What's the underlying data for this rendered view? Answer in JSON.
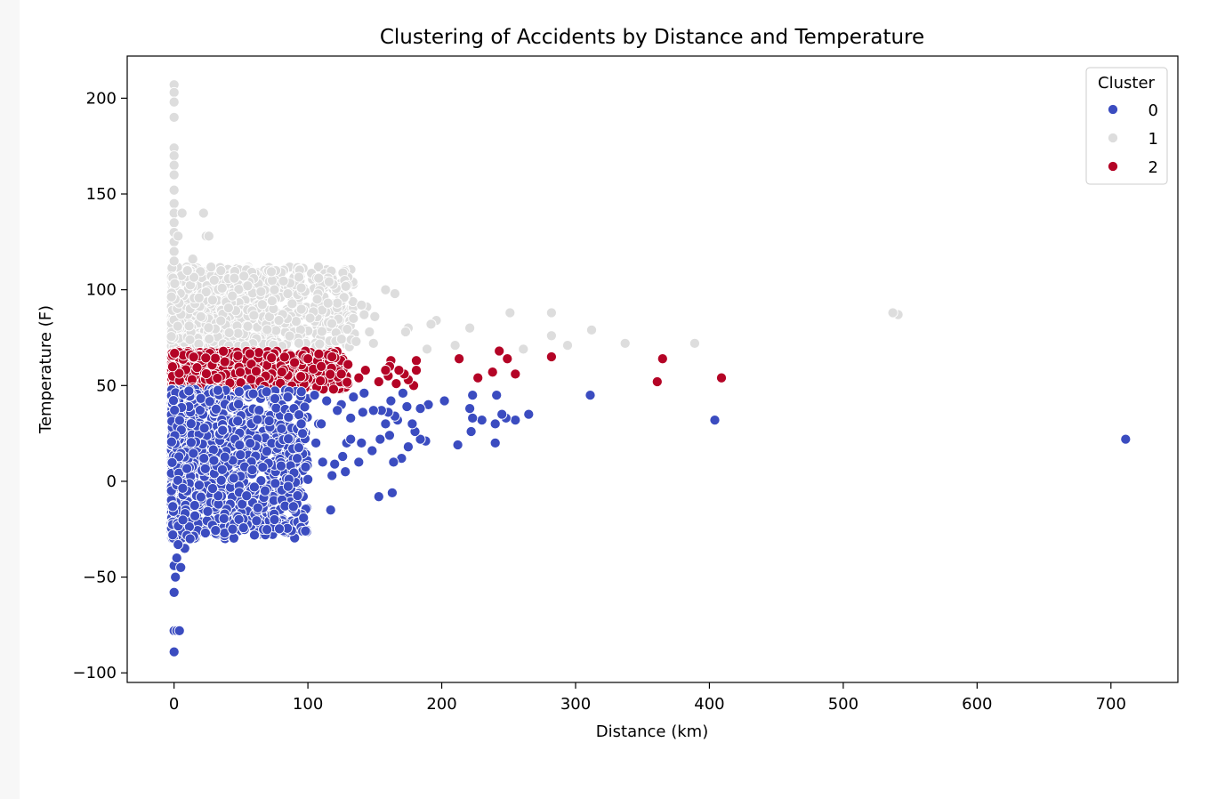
{
  "chart_data": {
    "type": "scatter",
    "title": "Clustering of Accidents by Distance and Temperature",
    "xlabel": "Distance (km)",
    "ylabel": "Temperature (F)",
    "xlim": [
      -35,
      750
    ],
    "ylim": [
      -105,
      222
    ],
    "xticks": [
      0,
      100,
      200,
      300,
      400,
      500,
      600,
      700
    ],
    "yticks": [
      -100,
      -50,
      0,
      50,
      100,
      150,
      200
    ],
    "ytick_labels": [
      "−100",
      "−50",
      "0",
      "50",
      "100",
      "150",
      "200"
    ],
    "grid": false,
    "legend": {
      "title": "Cluster",
      "placement": "top-right"
    },
    "series": [
      {
        "name": "0",
        "color": "#3b4cc0",
        "points": [
          [
            711,
            22
          ],
          [
            404,
            32
          ],
          [
            311,
            45
          ],
          [
            265,
            35
          ],
          [
            255,
            32
          ],
          [
            248,
            33
          ],
          [
            245,
            35
          ],
          [
            241,
            45
          ],
          [
            240,
            30
          ],
          [
            240,
            20
          ],
          [
            230,
            32
          ],
          [
            223,
            45
          ],
          [
            223,
            33
          ],
          [
            221,
            38
          ],
          [
            222,
            26
          ],
          [
            212,
            19
          ],
          [
            202,
            42
          ],
          [
            190,
            40
          ],
          [
            188,
            21
          ],
          [
            184,
            22
          ],
          [
            184,
            38
          ],
          [
            180,
            26
          ],
          [
            178,
            30
          ],
          [
            175,
            18
          ],
          [
            174,
            39
          ],
          [
            171,
            46
          ],
          [
            170,
            12
          ],
          [
            167,
            32
          ],
          [
            165,
            34
          ],
          [
            164,
            10
          ],
          [
            162,
            42
          ],
          [
            161,
            24
          ],
          [
            160,
            36
          ],
          [
            158,
            30
          ],
          [
            155,
            37
          ],
          [
            154,
            22
          ],
          [
            153,
            -8
          ],
          [
            149,
            37
          ],
          [
            148,
            16
          ],
          [
            142,
            46
          ],
          [
            141,
            36
          ],
          [
            138,
            10
          ],
          [
            134,
            44
          ],
          [
            132,
            33
          ],
          [
            129,
            20
          ],
          [
            128,
            5
          ],
          [
            126,
            13
          ],
          [
            125,
            40
          ],
          [
            122,
            37
          ],
          [
            120,
            9
          ],
          [
            118,
            3
          ],
          [
            117,
            -15
          ],
          [
            114,
            42
          ],
          [
            111,
            10
          ],
          [
            108,
            30
          ],
          [
            106,
            20
          ],
          [
            100,
            1
          ],
          [
            96,
            25
          ],
          [
            92,
            12
          ],
          [
            85,
            44
          ],
          [
            80,
            8
          ],
          [
            75,
            -20
          ],
          [
            68,
            -5
          ],
          [
            60,
            -3
          ],
          [
            163,
            -6
          ],
          [
            140,
            20
          ],
          [
            110,
            30
          ],
          [
            132,
            22
          ],
          [
            105,
            45
          ],
          [
            95,
            30
          ]
        ],
        "dense_region": {
          "x_range": [
            -2,
            100
          ],
          "y_range": [
            -30,
            48
          ],
          "count": 1300
        },
        "dense_column": [
          [
            0,
            -89
          ],
          [
            0,
            -78
          ],
          [
            2,
            -78
          ],
          [
            4,
            -78
          ],
          [
            0,
            -58
          ],
          [
            1,
            -50
          ],
          [
            0,
            -44
          ],
          [
            5,
            -45
          ],
          [
            2,
            -40
          ],
          [
            8,
            -35
          ],
          [
            12,
            -30
          ],
          [
            -1,
            -28
          ],
          [
            3,
            -33
          ]
        ]
      },
      {
        "name": "1",
        "color": "#dddddd",
        "points": [
          [
            541,
            87
          ],
          [
            537,
            88
          ],
          [
            389,
            72
          ],
          [
            337,
            72
          ],
          [
            312,
            79
          ],
          [
            294,
            71
          ],
          [
            282,
            76
          ],
          [
            282,
            88
          ],
          [
            261,
            69
          ],
          [
            251,
            88
          ],
          [
            221,
            80
          ],
          [
            210,
            71
          ],
          [
            196,
            84
          ],
          [
            192,
            82
          ],
          [
            189,
            69
          ],
          [
            175,
            80
          ],
          [
            173,
            78
          ],
          [
            165,
            98
          ],
          [
            158,
            100
          ],
          [
            150,
            86
          ],
          [
            149,
            72
          ],
          [
            146,
            78
          ],
          [
            144,
            91
          ],
          [
            142,
            87
          ],
          [
            140,
            92
          ],
          [
            136,
            73
          ],
          [
            134,
            85
          ],
          [
            127,
            96
          ],
          [
            122,
            93
          ],
          [
            115,
            93
          ],
          [
            107,
            95
          ],
          [
            95,
            101
          ],
          [
            85,
            98
          ],
          [
            75,
            100
          ],
          [
            65,
            99
          ],
          [
            55,
            102
          ],
          [
            45,
            106
          ],
          [
            35,
            110
          ],
          [
            30,
            105
          ],
          [
            24,
            128
          ],
          [
            22,
            140
          ],
          [
            26,
            128
          ],
          [
            6,
            140
          ],
          [
            3,
            128
          ],
          [
            10,
            110
          ],
          [
            14,
            116
          ]
        ],
        "dense_region": {
          "x_range": [
            -2,
            135
          ],
          "y_range": [
            70,
            112
          ],
          "count": 1000
        },
        "dense_column": [
          [
            0,
            207
          ],
          [
            0,
            203
          ],
          [
            0,
            198
          ],
          [
            0,
            190
          ],
          [
            0,
            174
          ],
          [
            0,
            170
          ],
          [
            0,
            165
          ],
          [
            0,
            160
          ],
          [
            0,
            152
          ],
          [
            0,
            145
          ],
          [
            0,
            140
          ],
          [
            0,
            135
          ],
          [
            0,
            130
          ],
          [
            0,
            125
          ],
          [
            0,
            120
          ],
          [
            0,
            115
          ]
        ]
      },
      {
        "name": "2",
        "color": "#b40426",
        "points": [
          [
            409,
            54
          ],
          [
            365,
            64
          ],
          [
            361,
            52
          ],
          [
            282,
            65
          ],
          [
            255,
            56
          ],
          [
            249,
            64
          ],
          [
            243,
            68
          ],
          [
            238,
            57
          ],
          [
            227,
            54
          ],
          [
            213,
            64
          ],
          [
            181,
            63
          ],
          [
            181,
            58
          ],
          [
            179,
            50
          ],
          [
            175,
            53
          ],
          [
            172,
            56
          ],
          [
            168,
            58
          ],
          [
            166,
            51
          ],
          [
            162,
            63
          ],
          [
            161,
            60
          ],
          [
            160,
            55
          ],
          [
            158,
            58
          ],
          [
            153,
            52
          ],
          [
            143,
            58
          ],
          [
            138,
            54
          ],
          [
            130,
            61
          ],
          [
            125,
            56
          ],
          [
            118,
            65
          ],
          [
            110,
            60
          ],
          [
            100,
            64
          ],
          [
            90,
            62
          ]
        ],
        "dense_region": {
          "x_range": [
            -2,
            130
          ],
          "y_range": [
            48,
            68
          ],
          "count": 650
        }
      }
    ]
  }
}
